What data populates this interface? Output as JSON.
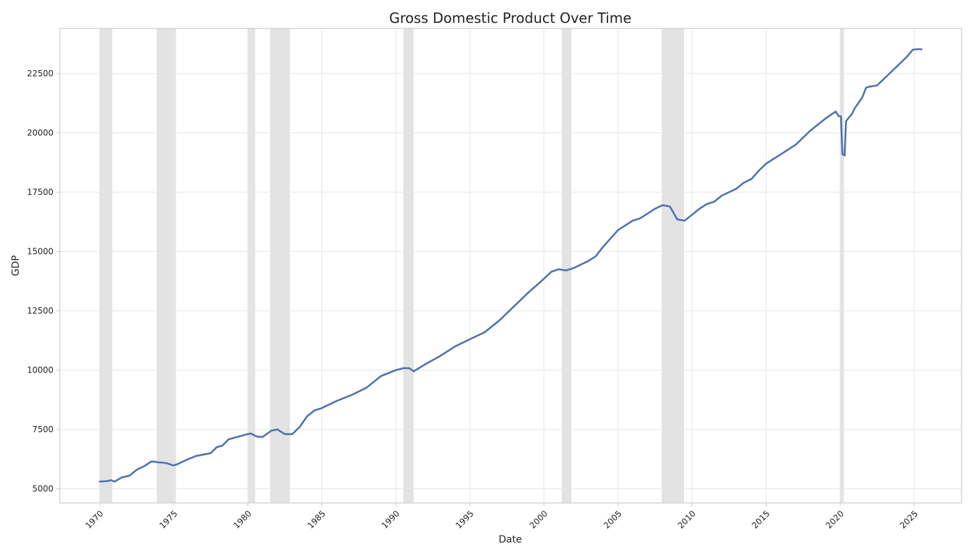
{
  "chart_data": {
    "type": "line",
    "title": "Gross Domestic Product Over Time",
    "xlabel": "Date",
    "ylabel": "GDP",
    "xlim": [
      1967.3,
      2028.2
    ],
    "ylim": [
      4400,
      24400
    ],
    "x_ticks": [
      1970,
      1975,
      1980,
      1985,
      1990,
      1995,
      2000,
      2005,
      2010,
      2015,
      2020,
      2025
    ],
    "y_ticks": [
      5000,
      7500,
      10000,
      12500,
      15000,
      17500,
      20000,
      22500
    ],
    "grid": true,
    "legend": "none",
    "recessions": [
      {
        "start": 1970.0,
        "end": 1970.85
      },
      {
        "start": 1973.85,
        "end": 1975.15
      },
      {
        "start": 1980.0,
        "end": 1980.5
      },
      {
        "start": 1981.5,
        "end": 1982.85
      },
      {
        "start": 1990.5,
        "end": 1991.2
      },
      {
        "start": 2001.2,
        "end": 2001.85
      },
      {
        "start": 2007.95,
        "end": 2009.45
      },
      {
        "start": 2020.0,
        "end": 2020.25
      }
    ],
    "series": [
      {
        "color": "#4c72b0",
        "x": [
          1970.0,
          1970.5,
          1970.75,
          1971.0,
          1971.5,
          1972.0,
          1972.5,
          1973.0,
          1973.5,
          1973.9,
          1974.5,
          1975.0,
          1975.3,
          1975.8,
          1976.5,
          1977.5,
          1977.9,
          1978.3,
          1978.7,
          1979.5,
          1980.0,
          1980.2,
          1980.6,
          1981.0,
          1981.6,
          1982.0,
          1982.5,
          1983.0,
          1983.5,
          1984.0,
          1984.5,
          1985.0,
          1986.0,
          1987.0,
          1988.0,
          1989.0,
          1990.0,
          1990.5,
          1990.9,
          1991.2,
          1992.0,
          1993.0,
          1994.0,
          1995.0,
          1996.0,
          1997.0,
          1998.0,
          1999.0,
          2000.0,
          2000.5,
          2001.0,
          2001.5,
          2002.0,
          2002.5,
          2003.0,
          2003.5,
          2004.0,
          2005.0,
          2006.0,
          2006.5,
          2007.0,
          2007.5,
          2008.0,
          2008.5,
          2009.0,
          2009.5,
          2010.0,
          2010.5,
          2011.0,
          2011.5,
          2012.0,
          2012.5,
          2013.0,
          2013.5,
          2014.0,
          2014.5,
          2015.0,
          2016.0,
          2017.0,
          2018.0,
          2019.0,
          2019.7,
          2019.9,
          2020.05,
          2020.15,
          2020.3,
          2020.4,
          2020.8,
          2021.0,
          2021.5,
          2021.75,
          2022.0,
          2022.5,
          2023.0,
          2023.5,
          2024.0,
          2024.5,
          2024.9,
          2025.2,
          2025.5
        ],
        "values": [
          5300,
          5320,
          5360,
          5300,
          5480,
          5550,
          5800,
          5950,
          6150,
          6120,
          6080,
          5980,
          6050,
          6200,
          6380,
          6500,
          6750,
          6820,
          7080,
          7220,
          7300,
          7330,
          7200,
          7180,
          7450,
          7500,
          7300,
          7300,
          7600,
          8050,
          8300,
          8400,
          8700,
          8950,
          9250,
          9750,
          10000,
          10080,
          10080,
          9950,
          10250,
          10600,
          11000,
          11300,
          11600,
          12100,
          12700,
          13300,
          13850,
          14150,
          14250,
          14200,
          14300,
          14450,
          14600,
          14800,
          15200,
          15900,
          16300,
          16400,
          16600,
          16800,
          16950,
          16900,
          16350,
          16300,
          16550,
          16800,
          17000,
          17100,
          17350,
          17500,
          17650,
          17900,
          18050,
          18400,
          18700,
          19100,
          19500,
          20100,
          20600,
          20900,
          20700,
          20700,
          19100,
          19050,
          20500,
          20800,
          21050,
          21500,
          21900,
          21950,
          22000,
          22300,
          22600,
          22900,
          23200,
          23500,
          23530,
          23520
        ]
      }
    ]
  }
}
